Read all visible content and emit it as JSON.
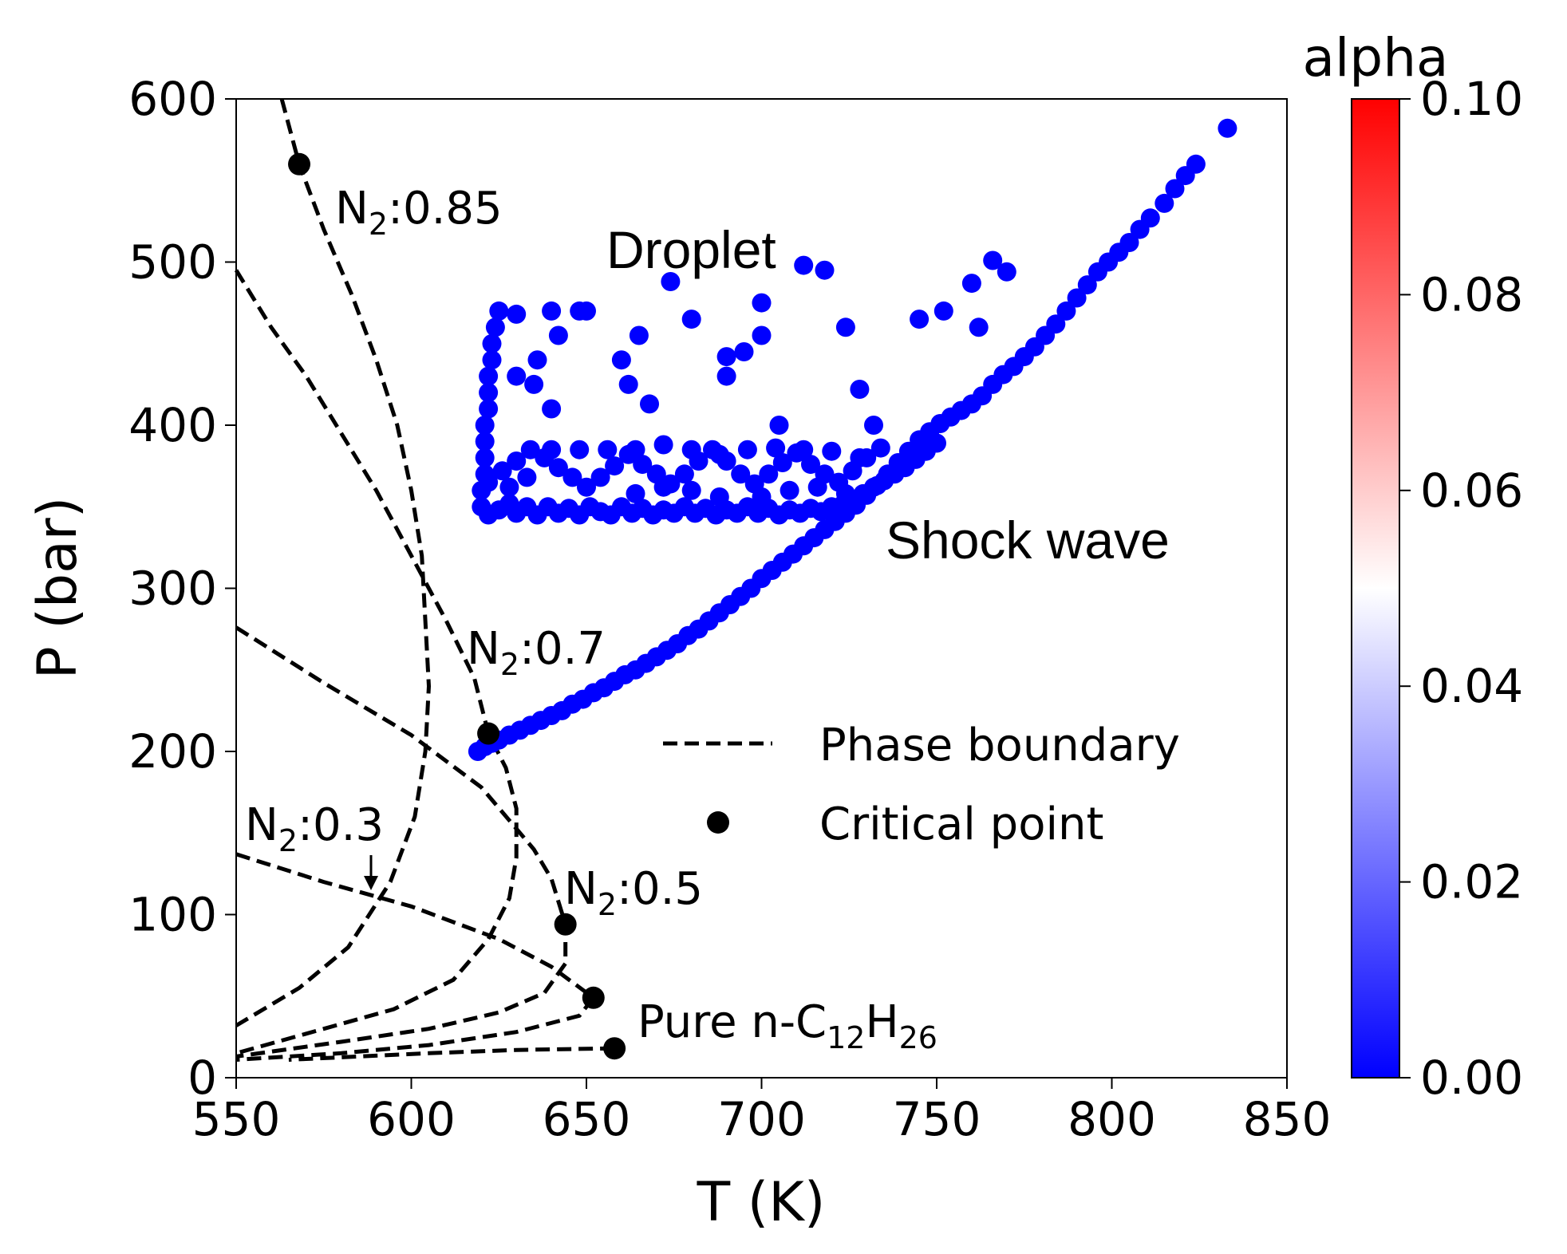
{
  "chart_data": {
    "type": "scatter",
    "xlabel": "T (K)",
    "ylabel": "P (bar)",
    "xlim": [
      550,
      850
    ],
    "ylim": [
      0,
      600
    ],
    "x_ticks": [
      "550",
      "600",
      "650",
      "700",
      "750",
      "800",
      "850"
    ],
    "y_ticks": [
      "0",
      "100",
      "200",
      "300",
      "400",
      "500",
      "600"
    ],
    "legend": {
      "placement": "center-right",
      "entries": [
        {
          "label": "Phase boundary",
          "marker": "dashed-line"
        },
        {
          "label": "Critical point",
          "marker": "filled-circle"
        }
      ]
    },
    "colorbar": {
      "title": "alpha",
      "range": [
        0,
        0.1
      ],
      "colormap": "bwr",
      "ticks": [
        "0.00",
        "0.02",
        "0.04",
        "0.06",
        "0.08",
        "0.10"
      ],
      "colors": {
        "low": "#0000ff",
        "mid": "#ffffff",
        "high": "#ff0000"
      }
    },
    "annotations": {
      "droplet": "Droplet",
      "shock_wave": "Shock wave",
      "n2_085": {
        "base": "N",
        "sub": "2",
        "rest": ":0.85"
      },
      "n2_07": {
        "base": "N",
        "sub": "2",
        "rest": ":0.7"
      },
      "n2_05": {
        "base": "N",
        "sub": "2",
        "rest": ":0.5"
      },
      "n2_03": {
        "base": "N",
        "sub": "2",
        "rest": ":0.3"
      },
      "pure": {
        "prefix": "Pure n-C",
        "sub1": "12",
        "mid": "H",
        "sub2": "26"
      }
    },
    "critical_points": [
      {
        "x": 568,
        "y": 560
      },
      {
        "x": 622,
        "y": 211
      },
      {
        "x": 644,
        "y": 94
      },
      {
        "x": 652,
        "y": 49
      },
      {
        "x": 658,
        "y": 18
      }
    ],
    "phase_boundaries": [
      {
        "name": "N2:0.85",
        "points": [
          [
            563,
            600
          ],
          [
            568,
            560
          ],
          [
            575,
            520
          ],
          [
            583,
            480
          ],
          [
            590,
            440
          ],
          [
            596,
            400
          ],
          [
            600,
            360
          ],
          [
            603,
            320
          ],
          [
            604,
            280
          ],
          [
            605,
            240
          ],
          [
            604,
            200
          ],
          [
            601,
            160
          ],
          [
            594,
            120
          ],
          [
            582,
            80
          ],
          [
            568,
            55
          ],
          [
            550,
            32
          ]
        ]
      },
      {
        "name": "N2:0.7",
        "points": [
          [
            550,
            495
          ],
          [
            560,
            460
          ],
          [
            570,
            430
          ],
          [
            580,
            395
          ],
          [
            590,
            360
          ],
          [
            600,
            320
          ],
          [
            610,
            280
          ],
          [
            618,
            245
          ],
          [
            622,
            211
          ],
          [
            627,
            190
          ],
          [
            630,
            165
          ],
          [
            630,
            135
          ],
          [
            628,
            110
          ],
          [
            622,
            85
          ],
          [
            612,
            60
          ],
          [
            595,
            42
          ],
          [
            575,
            30
          ],
          [
            550,
            15
          ]
        ]
      },
      {
        "name": "N2:0.5",
        "points": [
          [
            550,
            276
          ],
          [
            575,
            242
          ],
          [
            600,
            210
          ],
          [
            620,
            178
          ],
          [
            635,
            140
          ],
          [
            640,
            122
          ],
          [
            644,
            94
          ],
          [
            644,
            70
          ],
          [
            638,
            52
          ],
          [
            625,
            40
          ],
          [
            605,
            30
          ],
          [
            580,
            22
          ],
          [
            550,
            13
          ]
        ]
      },
      {
        "name": "N2:0.3",
        "points": [
          [
            550,
            137
          ],
          [
            575,
            120
          ],
          [
            600,
            105
          ],
          [
            625,
            85
          ],
          [
            640,
            68
          ],
          [
            652,
            49
          ],
          [
            648,
            38
          ],
          [
            630,
            28
          ],
          [
            605,
            20
          ],
          [
            580,
            15
          ],
          [
            550,
            11
          ]
        ]
      },
      {
        "name": "Pure",
        "points": [
          [
            658,
            18
          ],
          [
            630,
            17
          ],
          [
            605,
            15
          ],
          [
            585,
            13
          ],
          [
            565,
            11
          ]
        ]
      }
    ],
    "series": [
      {
        "name": "Shock wave",
        "color": "#0000ff",
        "points": [
          [
            619,
            200
          ],
          [
            621,
            203
          ],
          [
            623,
            205
          ],
          [
            625,
            207
          ],
          [
            628,
            210
          ],
          [
            631,
            213
          ],
          [
            634,
            216
          ],
          [
            637,
            219
          ],
          [
            640,
            222
          ],
          [
            643,
            225
          ],
          [
            646,
            229
          ],
          [
            649,
            232
          ],
          [
            652,
            236
          ],
          [
            655,
            239
          ],
          [
            658,
            243
          ],
          [
            661,
            247
          ],
          [
            664,
            250
          ],
          [
            667,
            254
          ],
          [
            670,
            258
          ],
          [
            673,
            262
          ],
          [
            676,
            266
          ],
          [
            679,
            271
          ],
          [
            682,
            275
          ],
          [
            685,
            280
          ],
          [
            688,
            285
          ],
          [
            691,
            290
          ],
          [
            694,
            295
          ],
          [
            697,
            300
          ],
          [
            700,
            306
          ],
          [
            703,
            311
          ],
          [
            706,
            316
          ],
          [
            709,
            321
          ],
          [
            712,
            326
          ],
          [
            715,
            331
          ],
          [
            718,
            336
          ],
          [
            721,
            341
          ],
          [
            724,
            346
          ],
          [
            727,
            351
          ],
          [
            730,
            357
          ],
          [
            733,
            363
          ],
          [
            736,
            370
          ],
          [
            739,
            377
          ],
          [
            742,
            384
          ],
          [
            745,
            391
          ],
          [
            748,
            396
          ],
          [
            751,
            401
          ],
          [
            754,
            405
          ],
          [
            757,
            409
          ],
          [
            760,
            413
          ],
          [
            763,
            418
          ],
          [
            766,
            425
          ],
          [
            769,
            431
          ],
          [
            772,
            436
          ],
          [
            775,
            442
          ],
          [
            778,
            448
          ],
          [
            781,
            455
          ],
          [
            784,
            462
          ],
          [
            787,
            470
          ],
          [
            790,
            478
          ],
          [
            793,
            486
          ],
          [
            796,
            494
          ],
          [
            799,
            500
          ],
          [
            802,
            506
          ],
          [
            805,
            512
          ],
          [
            808,
            520
          ],
          [
            811,
            527
          ],
          [
            815,
            536
          ],
          [
            818,
            545
          ],
          [
            821,
            553
          ],
          [
            824,
            560
          ],
          [
            833,
            582
          ]
        ]
      },
      {
        "name": "Droplet",
        "color": "#0000ff",
        "points": [
          [
            622,
            345
          ],
          [
            625,
            348
          ],
          [
            628,
            352
          ],
          [
            630,
            346
          ],
          [
            633,
            350
          ],
          [
            636,
            345
          ],
          [
            639,
            350
          ],
          [
            642,
            346
          ],
          [
            645,
            349
          ],
          [
            648,
            345
          ],
          [
            651,
            350
          ],
          [
            654,
            347
          ],
          [
            657,
            345
          ],
          [
            660,
            350
          ],
          [
            663,
            346
          ],
          [
            666,
            349
          ],
          [
            669,
            345
          ],
          [
            672,
            348
          ],
          [
            675,
            346
          ],
          [
            678,
            350
          ],
          [
            681,
            346
          ],
          [
            684,
            349
          ],
          [
            687,
            345
          ],
          [
            690,
            348
          ],
          [
            693,
            346
          ],
          [
            696,
            350
          ],
          [
            699,
            346
          ],
          [
            702,
            349
          ],
          [
            705,
            345
          ],
          [
            708,
            348
          ],
          [
            711,
            346
          ],
          [
            714,
            349
          ],
          [
            717,
            347
          ],
          [
            720,
            350
          ],
          [
            723,
            351
          ],
          [
            726,
            354
          ],
          [
            729,
            358
          ],
          [
            732,
            362
          ],
          [
            735,
            366
          ],
          [
            738,
            370
          ],
          [
            741,
            374
          ],
          [
            744,
            379
          ],
          [
            747,
            384
          ],
          [
            750,
            389
          ],
          [
            620,
            350
          ],
          [
            620,
            360
          ],
          [
            621,
            370
          ],
          [
            621,
            380
          ],
          [
            621,
            390
          ],
          [
            621,
            400
          ],
          [
            622,
            410
          ],
          [
            622,
            420
          ],
          [
            622,
            430
          ],
          [
            623,
            440
          ],
          [
            623,
            450
          ],
          [
            624,
            460
          ],
          [
            625,
            470
          ],
          [
            630,
            468
          ],
          [
            640,
            470
          ],
          [
            650,
            470
          ],
          [
            622,
            365
          ],
          [
            626,
            372
          ],
          [
            630,
            378
          ],
          [
            634,
            385
          ],
          [
            638,
            380
          ],
          [
            642,
            374
          ],
          [
            646,
            368
          ],
          [
            650,
            362
          ],
          [
            654,
            368
          ],
          [
            658,
            375
          ],
          [
            662,
            382
          ],
          [
            666,
            376
          ],
          [
            670,
            370
          ],
          [
            674,
            364
          ],
          [
            678,
            370
          ],
          [
            682,
            378
          ],
          [
            686,
            385
          ],
          [
            690,
            378
          ],
          [
            694,
            370
          ],
          [
            698,
            364
          ],
          [
            702,
            370
          ],
          [
            706,
            377
          ],
          [
            710,
            383
          ],
          [
            714,
            376
          ],
          [
            718,
            370
          ],
          [
            722,
            365
          ],
          [
            726,
            372
          ],
          [
            730,
            380
          ],
          [
            734,
            386
          ],
          [
            628,
            362
          ],
          [
            633,
            368
          ],
          [
            640,
            385
          ],
          [
            648,
            385
          ],
          [
            656,
            385
          ],
          [
            664,
            385
          ],
          [
            672,
            388
          ],
          [
            680,
            385
          ],
          [
            688,
            382
          ],
          [
            696,
            385
          ],
          [
            704,
            386
          ],
          [
            712,
            385
          ],
          [
            720,
            384
          ],
          [
            728,
            380
          ],
          [
            700,
            356
          ],
          [
            708,
            360
          ],
          [
            716,
            362
          ],
          [
            724,
            358
          ],
          [
            664,
            358
          ],
          [
            672,
            362
          ],
          [
            680,
            360
          ],
          [
            688,
            356
          ],
          [
            636,
            440
          ],
          [
            642,
            455
          ],
          [
            648,
            470
          ],
          [
            660,
            440
          ],
          [
            665,
            455
          ],
          [
            680,
            465
          ],
          [
            690,
            430
          ],
          [
            695,
            445
          ],
          [
            700,
            475
          ],
          [
            705,
            400
          ],
          [
            712,
            498
          ],
          [
            718,
            495
          ],
          [
            724,
            460
          ],
          [
            728,
            422
          ],
          [
            732,
            400
          ],
          [
            745,
            465
          ],
          [
            752,
            470
          ],
          [
            760,
            487
          ],
          [
            762,
            460
          ],
          [
            766,
            501
          ],
          [
            770,
            494
          ],
          [
            630,
            430
          ],
          [
            635,
            425
          ],
          [
            640,
            410
          ],
          [
            662,
            425
          ],
          [
            668,
            413
          ],
          [
            674,
            488
          ],
          [
            690,
            442
          ],
          [
            700,
            455
          ]
        ]
      }
    ]
  }
}
